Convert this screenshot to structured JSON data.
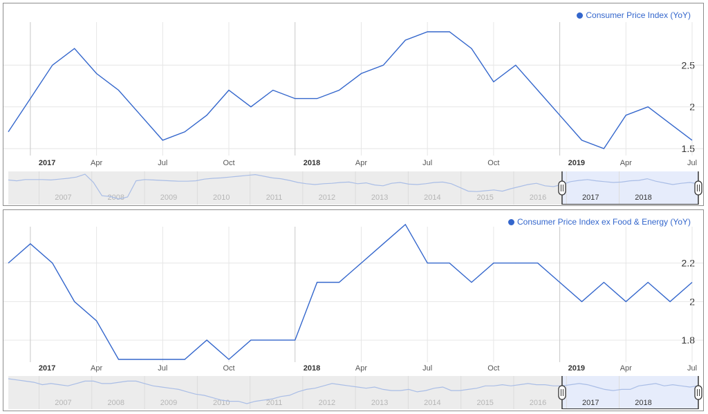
{
  "colors": {
    "series": "#3366cc",
    "grid": "#e6e6e6",
    "major_grid": "#c8c8c8",
    "nav_bg": "#ececec",
    "nav_sel": "#e6ecfb"
  },
  "chart_data": [
    {
      "type": "line",
      "legend": "Consumer Price Index (YoY)",
      "legend_position": "top-right",
      "x_unit": "month",
      "xlim": [
        "2016-12",
        "2019-07"
      ],
      "ylim": [
        1.45,
        2.95
      ],
      "x": [
        "2016-12",
        "2017-01",
        "2017-02",
        "2017-03",
        "2017-04",
        "2017-05",
        "2017-06",
        "2017-07",
        "2017-08",
        "2017-09",
        "2017-10",
        "2017-11",
        "2017-12",
        "2018-01",
        "2018-02",
        "2018-03",
        "2018-04",
        "2018-05",
        "2018-06",
        "2018-07",
        "2018-08",
        "2018-09",
        "2018-10",
        "2018-11",
        "2018-12",
        "2019-01",
        "2019-02",
        "2019-03",
        "2019-04",
        "2019-05",
        "2019-06",
        "2019-07"
      ],
      "values": [
        1.7,
        2.1,
        2.5,
        2.7,
        2.4,
        2.2,
        1.9,
        1.6,
        1.7,
        1.9,
        2.2,
        2.0,
        2.2,
        2.1,
        2.1,
        2.2,
        2.4,
        2.5,
        2.8,
        2.9,
        2.9,
        2.7,
        2.3,
        2.5,
        2.2,
        1.9,
        1.6,
        1.5,
        1.9,
        2.0,
        1.8,
        1.6
      ],
      "y_ticks": [
        "1.5",
        "2",
        "2.5"
      ],
      "y_tick_values": [
        1.5,
        2.0,
        2.5
      ],
      "x_ticks": [
        {
          "label": "2017",
          "month": "2017-01",
          "major": true
        },
        {
          "label": "Apr",
          "month": "2017-04",
          "major": false
        },
        {
          "label": "Jul",
          "month": "2017-07",
          "major": false
        },
        {
          "label": "Oct",
          "month": "2017-10",
          "major": false
        },
        {
          "label": "2018",
          "month": "2018-01",
          "major": true
        },
        {
          "label": "Apr",
          "month": "2018-04",
          "major": false
        },
        {
          "label": "Jul",
          "month": "2018-07",
          "major": false
        },
        {
          "label": "Oct",
          "month": "2018-10",
          "major": false
        },
        {
          "label": "2019",
          "month": "2019-01",
          "major": true
        },
        {
          "label": "Apr",
          "month": "2019-04",
          "major": false
        },
        {
          "label": "Jul",
          "month": "2019-07",
          "major": false
        }
      ],
      "navigator": {
        "year_labels": [
          "2007",
          "2008",
          "2009",
          "2010",
          "2011",
          "2012",
          "2013",
          "2014",
          "2015",
          "2016",
          "2017",
          "2018"
        ],
        "selection_start": "2016-12",
        "selection_end": "2019-07",
        "overview_values": [
          2.6,
          2.4,
          2.7,
          2.7,
          2.7,
          2.6,
          2.8,
          3.0,
          3.3,
          4.0,
          2.0,
          -1.2,
          -1.4,
          -2.0,
          -1.5,
          2.4,
          2.7,
          2.6,
          2.5,
          2.4,
          2.3,
          2.3,
          2.4,
          2.8,
          3.0,
          3.1,
          3.3,
          3.5,
          3.7,
          3.9,
          3.5,
          3.1,
          2.9,
          2.5,
          2.0,
          1.7,
          1.5,
          1.7,
          1.8,
          2.0,
          2.1,
          1.7,
          1.9,
          1.4,
          1.2,
          1.8,
          2.0,
          1.6,
          1.5,
          1.7,
          2.0,
          2.1,
          1.7,
          0.8,
          -0.1,
          -0.2,
          0.0,
          0.2,
          -0.1,
          0.5,
          1.0,
          1.5,
          1.8,
          1.2,
          1.0,
          1.5,
          2.2,
          2.5,
          2.7,
          2.4,
          2.2,
          2.0,
          2.1,
          2.4,
          2.5,
          2.9,
          2.3,
          1.9,
          1.5,
          1.8,
          2.0,
          1.7
        ]
      }
    },
    {
      "type": "line",
      "legend": "Consumer Price Index ex Food & Energy (YoY)",
      "legend_position": "top-right",
      "x_unit": "month",
      "xlim": [
        "2016-12",
        "2019-07"
      ],
      "ylim": [
        1.7,
        2.36
      ],
      "x": [
        "2016-12",
        "2017-01",
        "2017-02",
        "2017-03",
        "2017-04",
        "2017-05",
        "2017-06",
        "2017-07",
        "2017-08",
        "2017-09",
        "2017-10",
        "2017-11",
        "2017-12",
        "2018-01",
        "2018-02",
        "2018-03",
        "2018-04",
        "2018-05",
        "2018-06",
        "2018-07",
        "2018-08",
        "2018-09",
        "2018-10",
        "2018-11",
        "2018-12",
        "2019-01",
        "2019-02",
        "2019-03",
        "2019-04",
        "2019-05",
        "2019-06",
        "2019-07"
      ],
      "values": [
        2.2,
        2.3,
        2.2,
        2.0,
        1.9,
        1.7,
        1.7,
        1.7,
        1.7,
        1.8,
        1.7,
        1.8,
        1.8,
        1.8,
        2.1,
        2.1,
        2.2,
        2.3,
        2.4,
        2.2,
        2.2,
        2.1,
        2.2,
        2.2,
        2.2,
        2.1,
        2.0,
        2.1,
        2.0,
        2.1,
        2.0,
        2.1
      ],
      "y_ticks": [
        "1.8",
        "2",
        "2.2"
      ],
      "y_tick_values": [
        1.8,
        2.0,
        2.2
      ],
      "x_ticks": [
        {
          "label": "2017",
          "month": "2017-01",
          "major": true
        },
        {
          "label": "Apr",
          "month": "2017-04",
          "major": false
        },
        {
          "label": "Jul",
          "month": "2017-07",
          "major": false
        },
        {
          "label": "Oct",
          "month": "2017-10",
          "major": false
        },
        {
          "label": "2018",
          "month": "2018-01",
          "major": true
        },
        {
          "label": "Apr",
          "month": "2018-04",
          "major": false
        },
        {
          "label": "Jul",
          "month": "2018-07",
          "major": false
        },
        {
          "label": "Oct",
          "month": "2018-10",
          "major": false
        },
        {
          "label": "2019",
          "month": "2019-01",
          "major": true
        },
        {
          "label": "Apr",
          "month": "2019-04",
          "major": false
        },
        {
          "label": "Jul",
          "month": "2019-07",
          "major": false
        }
      ],
      "navigator": {
        "year_labels": [
          "2007",
          "2008",
          "2009",
          "2010",
          "2011",
          "2012",
          "2013",
          "2014",
          "2015",
          "2016",
          "2017",
          "2018"
        ],
        "selection_start": "2016-12",
        "selection_end": "2019-07",
        "overview_values": [
          2.7,
          2.6,
          2.5,
          2.4,
          2.2,
          2.3,
          2.2,
          2.1,
          2.3,
          2.5,
          2.5,
          2.3,
          2.3,
          2.4,
          2.5,
          2.5,
          2.3,
          2.1,
          2.0,
          1.9,
          1.8,
          1.6,
          1.4,
          1.3,
          1.1,
          0.9,
          0.8,
          0.8,
          0.6,
          0.8,
          0.9,
          1.0,
          1.2,
          1.3,
          1.6,
          1.8,
          1.9,
          2.1,
          2.3,
          2.2,
          2.1,
          2.0,
          1.9,
          2.0,
          1.8,
          1.7,
          1.7,
          1.8,
          1.6,
          1.7,
          1.9,
          2.0,
          1.7,
          1.7,
          1.8,
          1.9,
          2.1,
          2.1,
          2.2,
          2.1,
          2.2,
          2.3,
          2.2,
          2.2,
          2.1,
          2.1,
          2.2,
          2.3,
          2.2,
          2.0,
          1.8,
          1.7,
          1.8,
          1.8,
          2.1,
          2.2,
          2.3,
          2.1,
          2.2,
          2.1,
          2.0,
          2.1
        ]
      }
    }
  ]
}
